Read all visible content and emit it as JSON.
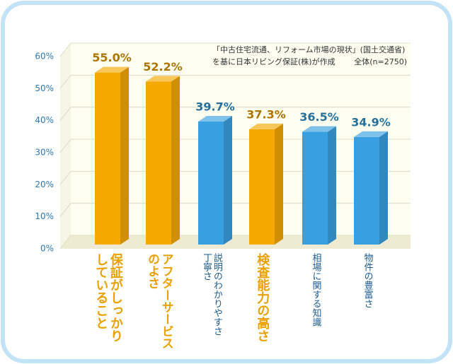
{
  "chart_data": {
    "type": "bar3d",
    "annotations": [
      "「中古住宅流通、リフォーム市場の現状」(国土交通省)",
      "を基に日本リビング保証(株)が作成",
      "全体(n=2750)"
    ],
    "categories": [
      "保証がしっかりしていること",
      "アフターサービスのよさ",
      "説明のわかりやすさ丁寧さ",
      "検査能力の高さ",
      "相場に関する知識",
      "物件の豊富さ"
    ],
    "values": [
      55.0,
      52.2,
      39.7,
      37.3,
      36.5,
      34.9
    ],
    "value_labels": [
      "55.0%",
      "52.2%",
      "39.7%",
      "37.3%",
      "36.5%",
      "34.9%"
    ],
    "colors": [
      "#f5a800",
      "#f5a800",
      "#38a0e0",
      "#f5a800",
      "#38a0e0",
      "#38a0e0"
    ],
    "ylim": [
      0,
      60
    ],
    "yticks": [
      {
        "value": 0,
        "label": "0%"
      },
      {
        "value": 10,
        "label": "10%"
      },
      {
        "value": 20,
        "label": "20%"
      },
      {
        "value": 30,
        "label": "30%"
      },
      {
        "value": 40,
        "label": "40%"
      },
      {
        "value": 50,
        "label": "50%"
      },
      {
        "value": 60,
        "label": "60%"
      }
    ],
    "grid": true
  }
}
